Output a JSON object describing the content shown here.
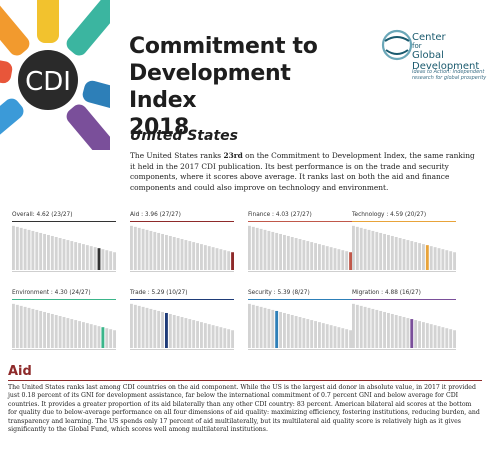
{
  "logo": {
    "text": "CDI"
  },
  "header": {
    "title_line1": "Commitment to",
    "title_line2": "Development Index",
    "title_line3": "2018"
  },
  "publisher": {
    "name_line1": "Center",
    "name_line2": "for",
    "name_line3": "Global",
    "name_line4": "Development",
    "tagline": "Ideas to Action: Independent research for global prosperity"
  },
  "country": "United States",
  "summary": {
    "before": "The United States ranks ",
    "rank": "23rd",
    "after": " on the Commitment to Development Index, the same ranking it held in the 2017 CDI publication. Its best performance is on the trade and security components, where it scores above average. It ranks last on both the aid and finance components and could also improve on technology and environment."
  },
  "chart_data": [
    {
      "type": "bar",
      "title": "Overall: 4.62 (23/27)",
      "color": "#333333",
      "count": 27,
      "highlight_rank": 23
    },
    {
      "type": "bar",
      "title": "Aid : 3.96 (27/27)",
      "color": "#8e2a2a",
      "count": 27,
      "highlight_rank": 27
    },
    {
      "type": "bar",
      "title": "Finance : 4.03 (27/27)",
      "color": "#c0584a",
      "count": 27,
      "highlight_rank": 27
    },
    {
      "type": "bar",
      "title": "Technology : 4.59 (20/27)",
      "color": "#e8a33a",
      "count": 27,
      "highlight_rank": 20
    },
    {
      "type": "bar",
      "title": "Environment : 4.30 (24/27)",
      "color": "#3bb58a",
      "count": 27,
      "highlight_rank": 24
    },
    {
      "type": "bar",
      "title": "Trade : 5.29 (10/27)",
      "color": "#1e3b78",
      "count": 27,
      "highlight_rank": 10
    },
    {
      "type": "bar",
      "title": "Security : 5.39 (8/27)",
      "color": "#2d7fb8",
      "count": 27,
      "highlight_rank": 8
    },
    {
      "type": "bar",
      "title": "Migration : 4.88 (16/27)",
      "color": "#7a4f9a",
      "count": 27,
      "highlight_rank": 16
    }
  ],
  "aid": {
    "heading": "Aid",
    "body": "The United States ranks last among CDI countries on the aid component. While the US is the largest aid donor in absolute value, in 2017 it provided just 0.18 percent of its GNI for development assistance, far below the international commitment of 0.7 percent GNI and below average for CDI countries. It provides a greater proportion of its aid bilaterally than any other CDI country: 83 percent. American bilateral aid scores at the bottom for quality due to below-average performance on all four dimensions of aid quality: maximizing efficiency, fostering institutions, reducing burden, and transparency and learning. The US spends only 17 percent of aid multilaterally, but its multilateral aid quality score is relatively high as it gives significantly to the Global Fund, which scores well among multilateral institutions."
  }
}
